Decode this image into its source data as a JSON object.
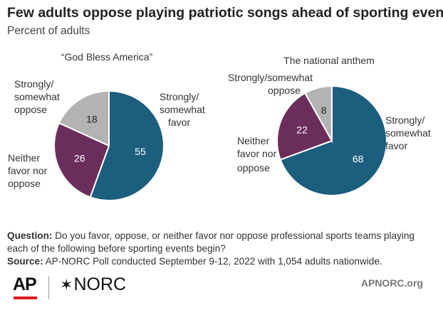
{
  "title": "Few adults oppose playing patriotic songs ahead of sporting events.",
  "subtitle": "Percent of adults",
  "chart_data": [
    {
      "type": "pie",
      "title": "“God Bless America”",
      "slices": [
        {
          "label": "Strongly/ somewhat favor",
          "value": 55,
          "color": "#1b5e7e"
        },
        {
          "label": "Neither favor nor oppose",
          "value": 26,
          "color": "#6b2d5c"
        },
        {
          "label": "Strongly/ somewhat oppose",
          "value": 18,
          "color": "#b3b3b3"
        }
      ]
    },
    {
      "type": "pie",
      "title": "The national anthem",
      "slices": [
        {
          "label": "Strongly/ somewhat favor",
          "value": 68,
          "color": "#1b5e7e"
        },
        {
          "label": "Neither favor nor oppose",
          "value": 22,
          "color": "#6b2d5c"
        },
        {
          "label": "Strongly/ somewhat oppose",
          "value": 8,
          "color": "#b3b3b3"
        }
      ]
    }
  ],
  "labels": {
    "gba_favor": [
      "Strongly/",
      "somewhat",
      "favor"
    ],
    "gba_neither": [
      "Neither",
      "favor nor",
      "oppose"
    ],
    "gba_oppose": [
      "Strongly/",
      "somewhat",
      "oppose"
    ],
    "na_favor": [
      "Strongly/",
      "somewhat",
      "favor"
    ],
    "na_neither": [
      "Neither",
      "favor nor",
      "oppose"
    ],
    "na_oppose": [
      "Strongly/somewhat",
      "oppose"
    ]
  },
  "notes": {
    "question_label": "Question:",
    "question_text": "Do you favor, oppose, or neither favor nor oppose professional sports teams playing each of the following before sporting events begin?",
    "source_label": "Source:",
    "source_text": "AP-NORC Poll conducted September 9-12, 2022 with 1,054 adults nationwide."
  },
  "footer": {
    "logo_ap": "AP",
    "logo_norc_star": "✶",
    "logo_norc": "NORC",
    "site": "APNORC.org"
  }
}
